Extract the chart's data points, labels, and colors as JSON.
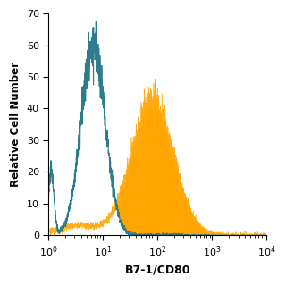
{
  "title": "",
  "xlabel": "B7-1/CD80",
  "ylabel": "Relative Cell Number",
  "xlim_log": [
    1,
    10000
  ],
  "ylim": [
    0,
    70
  ],
  "yticks": [
    0,
    10,
    20,
    30,
    40,
    50,
    60,
    70
  ],
  "open_color": "#2e7d8c",
  "filled_color": "#FFA500",
  "filled_alpha": 1.0,
  "open_alpha": 1.0,
  "background_color": "#ffffff",
  "figsize": [
    3.2,
    3.2
  ],
  "dpi": 100
}
